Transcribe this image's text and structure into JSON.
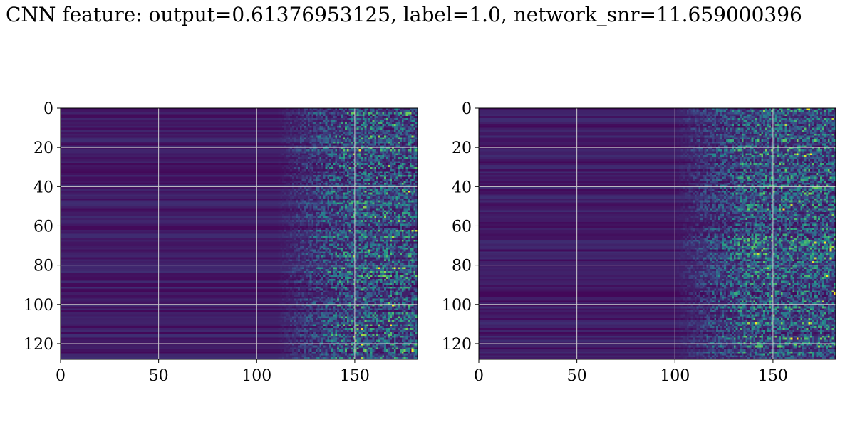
{
  "title": "CNN feature: output=0.61376953125, label=1.0, network_snr=11.659000396",
  "colormap": [
    "#440154",
    "#3b528b",
    "#21918c",
    "#5ec962",
    "#fde725"
  ],
  "gridline_color": "#cccccc",
  "chart_data": [
    {
      "type": "heatmap",
      "rows": 128,
      "cols": 182,
      "xlim": [
        0,
        182
      ],
      "ylim": [
        128,
        0
      ],
      "xticks": [
        0,
        50,
        100,
        150
      ],
      "yticks": [
        0,
        20,
        40,
        60,
        80,
        100,
        120
      ],
      "grid": true,
      "onset_col": 125,
      "bright_col": 148,
      "seed": 11,
      "title": "",
      "xlabel": "",
      "ylabel": ""
    },
    {
      "type": "heatmap",
      "rows": 128,
      "cols": 182,
      "xlim": [
        0,
        182
      ],
      "ylim": [
        128,
        0
      ],
      "xticks": [
        0,
        50,
        100,
        150
      ],
      "yticks": [
        0,
        20,
        40,
        60,
        80,
        100,
        120
      ],
      "grid": true,
      "onset_col": 115,
      "bright_col": 138,
      "seed": 29,
      "title": "",
      "xlabel": "",
      "ylabel": ""
    }
  ]
}
